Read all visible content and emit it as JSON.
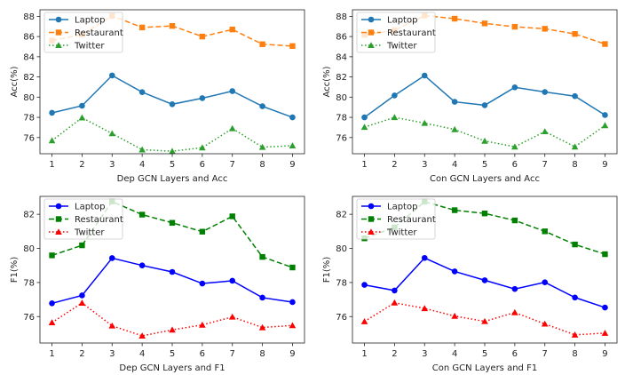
{
  "chart_data": [
    {
      "type": "line",
      "title": "",
      "xlabel": "Dep GCN Layers and Acc",
      "ylabel": "Acc(%)",
      "x": [
        1,
        2,
        3,
        4,
        5,
        6,
        7,
        8,
        9
      ],
      "ylim": [
        74.4,
        88.65
      ],
      "yticks": [
        76,
        78,
        80,
        82,
        84,
        86,
        88
      ],
      "legend": "top-left",
      "grid": false,
      "series": [
        {
          "name": "Laptop",
          "marker": "circle",
          "linestyle": "solid",
          "color": "#1f77b4",
          "values": [
            78.45,
            79.15,
            82.15,
            80.5,
            79.3,
            79.9,
            80.6,
            79.1,
            78.0
          ]
        },
        {
          "name": "Restaurant",
          "marker": "square",
          "linestyle": "dashed",
          "color": "#ff7f0e",
          "values": [
            85.6,
            86.2,
            88.05,
            86.9,
            87.05,
            86.0,
            86.7,
            85.24,
            85.06
          ]
        },
        {
          "name": "Twitter",
          "marker": "triangle",
          "linestyle": "dotted",
          "color": "#2ca02c",
          "values": [
            75.7,
            77.97,
            76.4,
            74.8,
            74.65,
            75.0,
            76.9,
            75.05,
            75.2
          ]
        }
      ]
    },
    {
      "type": "line",
      "title": "",
      "xlabel": "Con GCN Layers and Acc",
      "ylabel": "Acc(%)",
      "x": [
        1,
        2,
        3,
        4,
        5,
        6,
        7,
        8,
        9
      ],
      "ylim": [
        74.4,
        88.65
      ],
      "yticks": [
        76,
        78,
        80,
        82,
        84,
        86,
        88
      ],
      "legend": "top-left",
      "grid": false,
      "series": [
        {
          "name": "Laptop",
          "marker": "circle",
          "linestyle": "solid",
          "color": "#1f77b4",
          "values": [
            78.0,
            80.17,
            82.14,
            79.54,
            79.2,
            80.97,
            80.51,
            80.1,
            78.23
          ]
        },
        {
          "name": "Restaurant",
          "marker": "square",
          "linestyle": "dashed",
          "color": "#ff7f0e",
          "values": [
            86.17,
            86.6,
            88.08,
            87.77,
            87.3,
            86.97,
            86.77,
            86.26,
            85.26
          ]
        },
        {
          "name": "Twitter",
          "marker": "triangle",
          "linestyle": "dotted",
          "color": "#2ca02c",
          "values": [
            77.03,
            78.0,
            77.43,
            76.8,
            75.66,
            75.09,
            76.6,
            75.09,
            77.2
          ]
        }
      ]
    },
    {
      "type": "line",
      "title": "",
      "xlabel": "Dep GCN Layers and F1",
      "ylabel": "F1(%)",
      "x": [
        1,
        2,
        3,
        4,
        5,
        6,
        7,
        8,
        9
      ],
      "ylim": [
        74.45,
        83.05
      ],
      "yticks": [
        76,
        78,
        80,
        82
      ],
      "legend": "top-left",
      "grid": false,
      "series": [
        {
          "name": "Laptop",
          "marker": "circle",
          "linestyle": "solid",
          "color": "#0000ff",
          "values": [
            76.78,
            77.24,
            79.43,
            79.0,
            78.62,
            77.94,
            78.1,
            77.11,
            76.85
          ]
        },
        {
          "name": "Restaurant",
          "marker": "square",
          "linestyle": "dashed",
          "color": "#008000",
          "values": [
            79.59,
            80.18,
            82.75,
            81.98,
            81.5,
            80.98,
            81.88,
            79.5,
            78.88
          ]
        },
        {
          "name": "Twitter",
          "marker": "triangle",
          "linestyle": "dotted",
          "color": "#ff0000",
          "values": [
            75.65,
            76.8,
            75.46,
            74.87,
            75.22,
            75.51,
            75.98,
            75.36,
            75.48
          ]
        }
      ]
    },
    {
      "type": "line",
      "title": "",
      "xlabel": "Con GCN Layers and F1",
      "ylabel": "F1(%)",
      "x": [
        1,
        2,
        3,
        4,
        5,
        6,
        7,
        8,
        9
      ],
      "ylim": [
        74.45,
        83.05
      ],
      "yticks": [
        76,
        78,
        80,
        82
      ],
      "legend": "top-left",
      "grid": false,
      "series": [
        {
          "name": "Laptop",
          "marker": "circle",
          "linestyle": "solid",
          "color": "#0000ff",
          "values": [
            77.86,
            77.53,
            79.44,
            78.65,
            78.13,
            77.62,
            78.01,
            77.12,
            76.53
          ]
        },
        {
          "name": "Restaurant",
          "marker": "square",
          "linestyle": "dashed",
          "color": "#008000",
          "values": [
            80.59,
            81.23,
            82.74,
            82.24,
            82.05,
            81.64,
            81.0,
            80.23,
            79.66
          ]
        },
        {
          "name": "Twitter",
          "marker": "triangle",
          "linestyle": "dotted",
          "color": "#ff0000",
          "values": [
            75.71,
            76.81,
            76.48,
            76.03,
            75.72,
            76.24,
            75.57,
            74.93,
            75.03
          ]
        }
      ]
    }
  ]
}
